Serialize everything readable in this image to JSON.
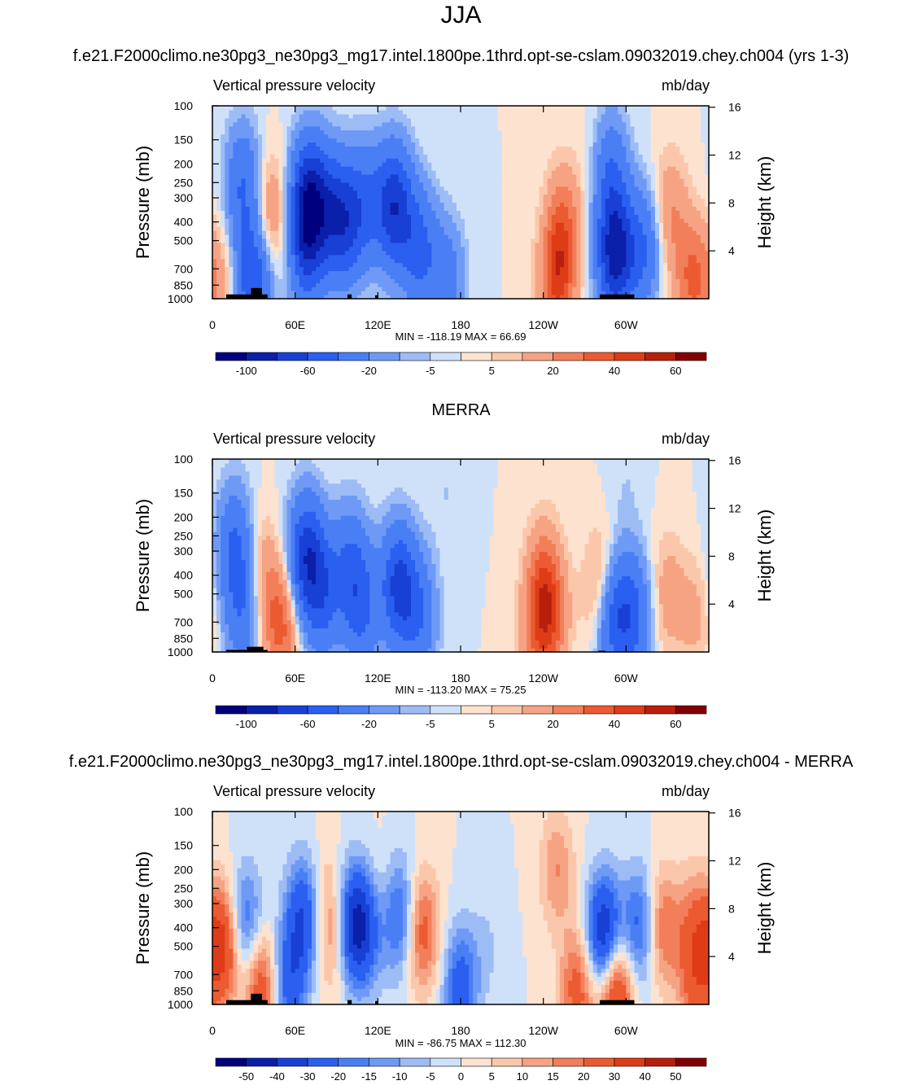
{
  "title": "JJA",
  "colors": {
    "neg": [
      "#00007f",
      "#0a1faa",
      "#1840d4",
      "#2a5ff0",
      "#4a7ef5",
      "#6e9af6",
      "#9dbcf6",
      "#cfe1f9"
    ],
    "pos": [
      "#fde2cf",
      "#fbc7ab",
      "#f6a384",
      "#f27f5a",
      "#ec5a31",
      "#dd3c17",
      "#b81f0c",
      "#830000"
    ],
    "frame": "#000000"
  },
  "panels": [
    {
      "id": "model",
      "subtitle": "f.e21.F2000climo.ne30pg3_ne30pg3_mg17.intel.1800pe.1thrd.opt-se-cslam.09032019.chey.ch004 (yrs 1-3)",
      "left_label": "Vertical pressure velocity",
      "right_label": "mb/day",
      "stats": "MIN = -118.19  MAX =  66.69",
      "colorbar_labels": [
        "-100",
        "-60",
        "-20",
        "-5",
        "5",
        "20",
        "40",
        "60"
      ]
    },
    {
      "id": "merra",
      "subtitle": "MERRA",
      "left_label": "Vertical pressure velocity",
      "right_label": "mb/day",
      "stats": "MIN = -113.20  MAX =  75.25",
      "colorbar_labels": [
        "-100",
        "-60",
        "-20",
        "-5",
        "5",
        "20",
        "40",
        "60"
      ]
    },
    {
      "id": "diff",
      "subtitle": "f.e21.F2000climo.ne30pg3_ne30pg3_mg17.intel.1800pe.1thrd.opt-se-cslam.09032019.chey.ch004 - MERRA",
      "left_label": "Vertical pressure velocity",
      "right_label": "mb/day",
      "stats": "MIN = -86.75  MAX = 112.30",
      "colorbar_labels": [
        "-50",
        "-40",
        "-30",
        "-20",
        "-15",
        "-10",
        "-5",
        "0",
        "5",
        "10",
        "15",
        "20",
        "30",
        "40",
        "50"
      ]
    }
  ],
  "axes": {
    "ylabel": "Pressure (mb)",
    "y2label": "Height (km)",
    "xticks": [
      "0",
      "60E",
      "120E",
      "180",
      "120W",
      "60W"
    ],
    "yticks": [
      "100",
      "150",
      "200",
      "250",
      "300",
      "400",
      "500",
      "700",
      "850",
      "1000"
    ],
    "y2ticks": [
      "16",
      "12",
      "8",
      "4"
    ]
  },
  "chart_data": [
    {
      "type": "heatmap",
      "title": "JJA",
      "subtitle": "f.e21.F2000climo.ne30pg3_ne30pg3_mg17.intel.1800pe.1thrd.opt-se-cslam.09032019.chey.ch004 (yrs 1-3)",
      "variable": "Vertical pressure velocity",
      "units": "mb/day",
      "min": -118.19,
      "max": 66.69,
      "levels": [
        -100,
        -80,
        -60,
        -40,
        -20,
        -10,
        -5,
        0,
        5,
        10,
        20,
        30,
        40,
        50,
        60
      ],
      "x_range_deg_east": [
        0,
        360
      ],
      "y_range_mb": [
        1000,
        100
      ],
      "blobs": [
        {
          "lon": 22,
          "p": 260,
          "val": -40
        },
        {
          "lon": 30,
          "p": 800,
          "val": -60
        },
        {
          "lon": 42,
          "p": 380,
          "val": 25
        },
        {
          "lon": 70,
          "p": 300,
          "val": -80
        },
        {
          "lon": 68,
          "p": 550,
          "val": -50
        },
        {
          "lon": 85,
          "p": 350,
          "val": -45
        },
        {
          "lon": 97,
          "p": 400,
          "val": -55
        },
        {
          "lon": 112,
          "p": 320,
          "val": -35
        },
        {
          "lon": 132,
          "p": 330,
          "val": -75
        },
        {
          "lon": 150,
          "p": 550,
          "val": -45
        },
        {
          "lon": 170,
          "p": 800,
          "val": -30
        },
        {
          "lon": 255,
          "p": 400,
          "val": 25
        },
        {
          "lon": 250,
          "p": 780,
          "val": 40
        },
        {
          "lon": 280,
          "p": 200,
          "val": 8
        },
        {
          "lon": 292,
          "p": 580,
          "val": -90
        },
        {
          "lon": 288,
          "p": 220,
          "val": -40
        },
        {
          "lon": 312,
          "p": 550,
          "val": -40
        },
        {
          "lon": 332,
          "p": 360,
          "val": 20
        },
        {
          "lon": 348,
          "p": 800,
          "val": 30
        },
        {
          "lon": 5,
          "p": 800,
          "val": 15
        }
      ]
    },
    {
      "type": "heatmap",
      "title": "MERRA",
      "variable": "Vertical pressure velocity",
      "units": "mb/day",
      "min": -113.2,
      "max": 75.25,
      "levels": [
        -100,
        -80,
        -60,
        -40,
        -20,
        -10,
        -5,
        0,
        5,
        10,
        20,
        30,
        40,
        50,
        60
      ],
      "x_range_deg_east": [
        0,
        360
      ],
      "y_range_mb": [
        1000,
        100
      ],
      "blobs": [
        {
          "lon": 16,
          "p": 280,
          "val": -40
        },
        {
          "lon": 22,
          "p": 600,
          "val": -35
        },
        {
          "lon": 35,
          "p": 400,
          "val": 18
        },
        {
          "lon": 50,
          "p": 700,
          "val": 35
        },
        {
          "lon": 68,
          "p": 320,
          "val": -70
        },
        {
          "lon": 80,
          "p": 500,
          "val": -45
        },
        {
          "lon": 100,
          "p": 350,
          "val": -35
        },
        {
          "lon": 108,
          "p": 600,
          "val": -40
        },
        {
          "lon": 135,
          "p": 450,
          "val": -65
        },
        {
          "lon": 150,
          "p": 650,
          "val": -35
        },
        {
          "lon": 240,
          "p": 400,
          "val": 22
        },
        {
          "lon": 245,
          "p": 650,
          "val": 30
        },
        {
          "lon": 235,
          "p": 800,
          "val": 20
        },
        {
          "lon": 283,
          "p": 500,
          "val": 30
        },
        {
          "lon": 290,
          "p": 650,
          "val": -55
        },
        {
          "lon": 305,
          "p": 650,
          "val": -45
        },
        {
          "lon": 330,
          "p": 500,
          "val": 15
        },
        {
          "lon": 350,
          "p": 650,
          "val": 12
        },
        {
          "lon": 170,
          "p": 150,
          "val": -5
        },
        {
          "lon": 300,
          "p": 150,
          "val": -5
        }
      ]
    },
    {
      "type": "heatmap",
      "title": "f.e21.F2000climo.ne30pg3_ne30pg3_mg17.intel.1800pe.1thrd.opt-se-cslam.09032019.chey.ch004 - MERRA",
      "variable": "Vertical pressure velocity",
      "units": "mb/day",
      "min": -86.75,
      "max": 112.3,
      "levels": [
        -50,
        -40,
        -30,
        -20,
        -15,
        -10,
        -5,
        0,
        5,
        10,
        15,
        20,
        30,
        40,
        50
      ],
      "x_range_deg_east": [
        0,
        360
      ],
      "y_range_mb": [
        1000,
        100
      ],
      "blobs": [
        {
          "lon": 8,
          "p": 500,
          "val": 35
        },
        {
          "lon": 24,
          "p": 400,
          "val": -25
        },
        {
          "lon": 35,
          "p": 800,
          "val": 30
        },
        {
          "lon": 55,
          "p": 780,
          "val": -25
        },
        {
          "lon": 66,
          "p": 350,
          "val": -30
        },
        {
          "lon": 82,
          "p": 300,
          "val": 10
        },
        {
          "lon": 90,
          "p": 450,
          "val": 18
        },
        {
          "lon": 100,
          "p": 400,
          "val": -35
        },
        {
          "lon": 112,
          "p": 380,
          "val": -30
        },
        {
          "lon": 120,
          "p": 300,
          "val": 12
        },
        {
          "lon": 135,
          "p": 350,
          "val": -25
        },
        {
          "lon": 152,
          "p": 420,
          "val": 25
        },
        {
          "lon": 180,
          "p": 800,
          "val": -25
        },
        {
          "lon": 200,
          "p": 500,
          "val": -5
        },
        {
          "lon": 250,
          "p": 200,
          "val": 15
        },
        {
          "lon": 265,
          "p": 820,
          "val": 25
        },
        {
          "lon": 284,
          "p": 450,
          "val": -45
        },
        {
          "lon": 292,
          "p": 850,
          "val": 40
        },
        {
          "lon": 310,
          "p": 400,
          "val": -25
        },
        {
          "lon": 326,
          "p": 400,
          "val": 22
        },
        {
          "lon": 350,
          "p": 400,
          "val": 18
        },
        {
          "lon": 350,
          "p": 820,
          "val": 18
        }
      ]
    }
  ]
}
